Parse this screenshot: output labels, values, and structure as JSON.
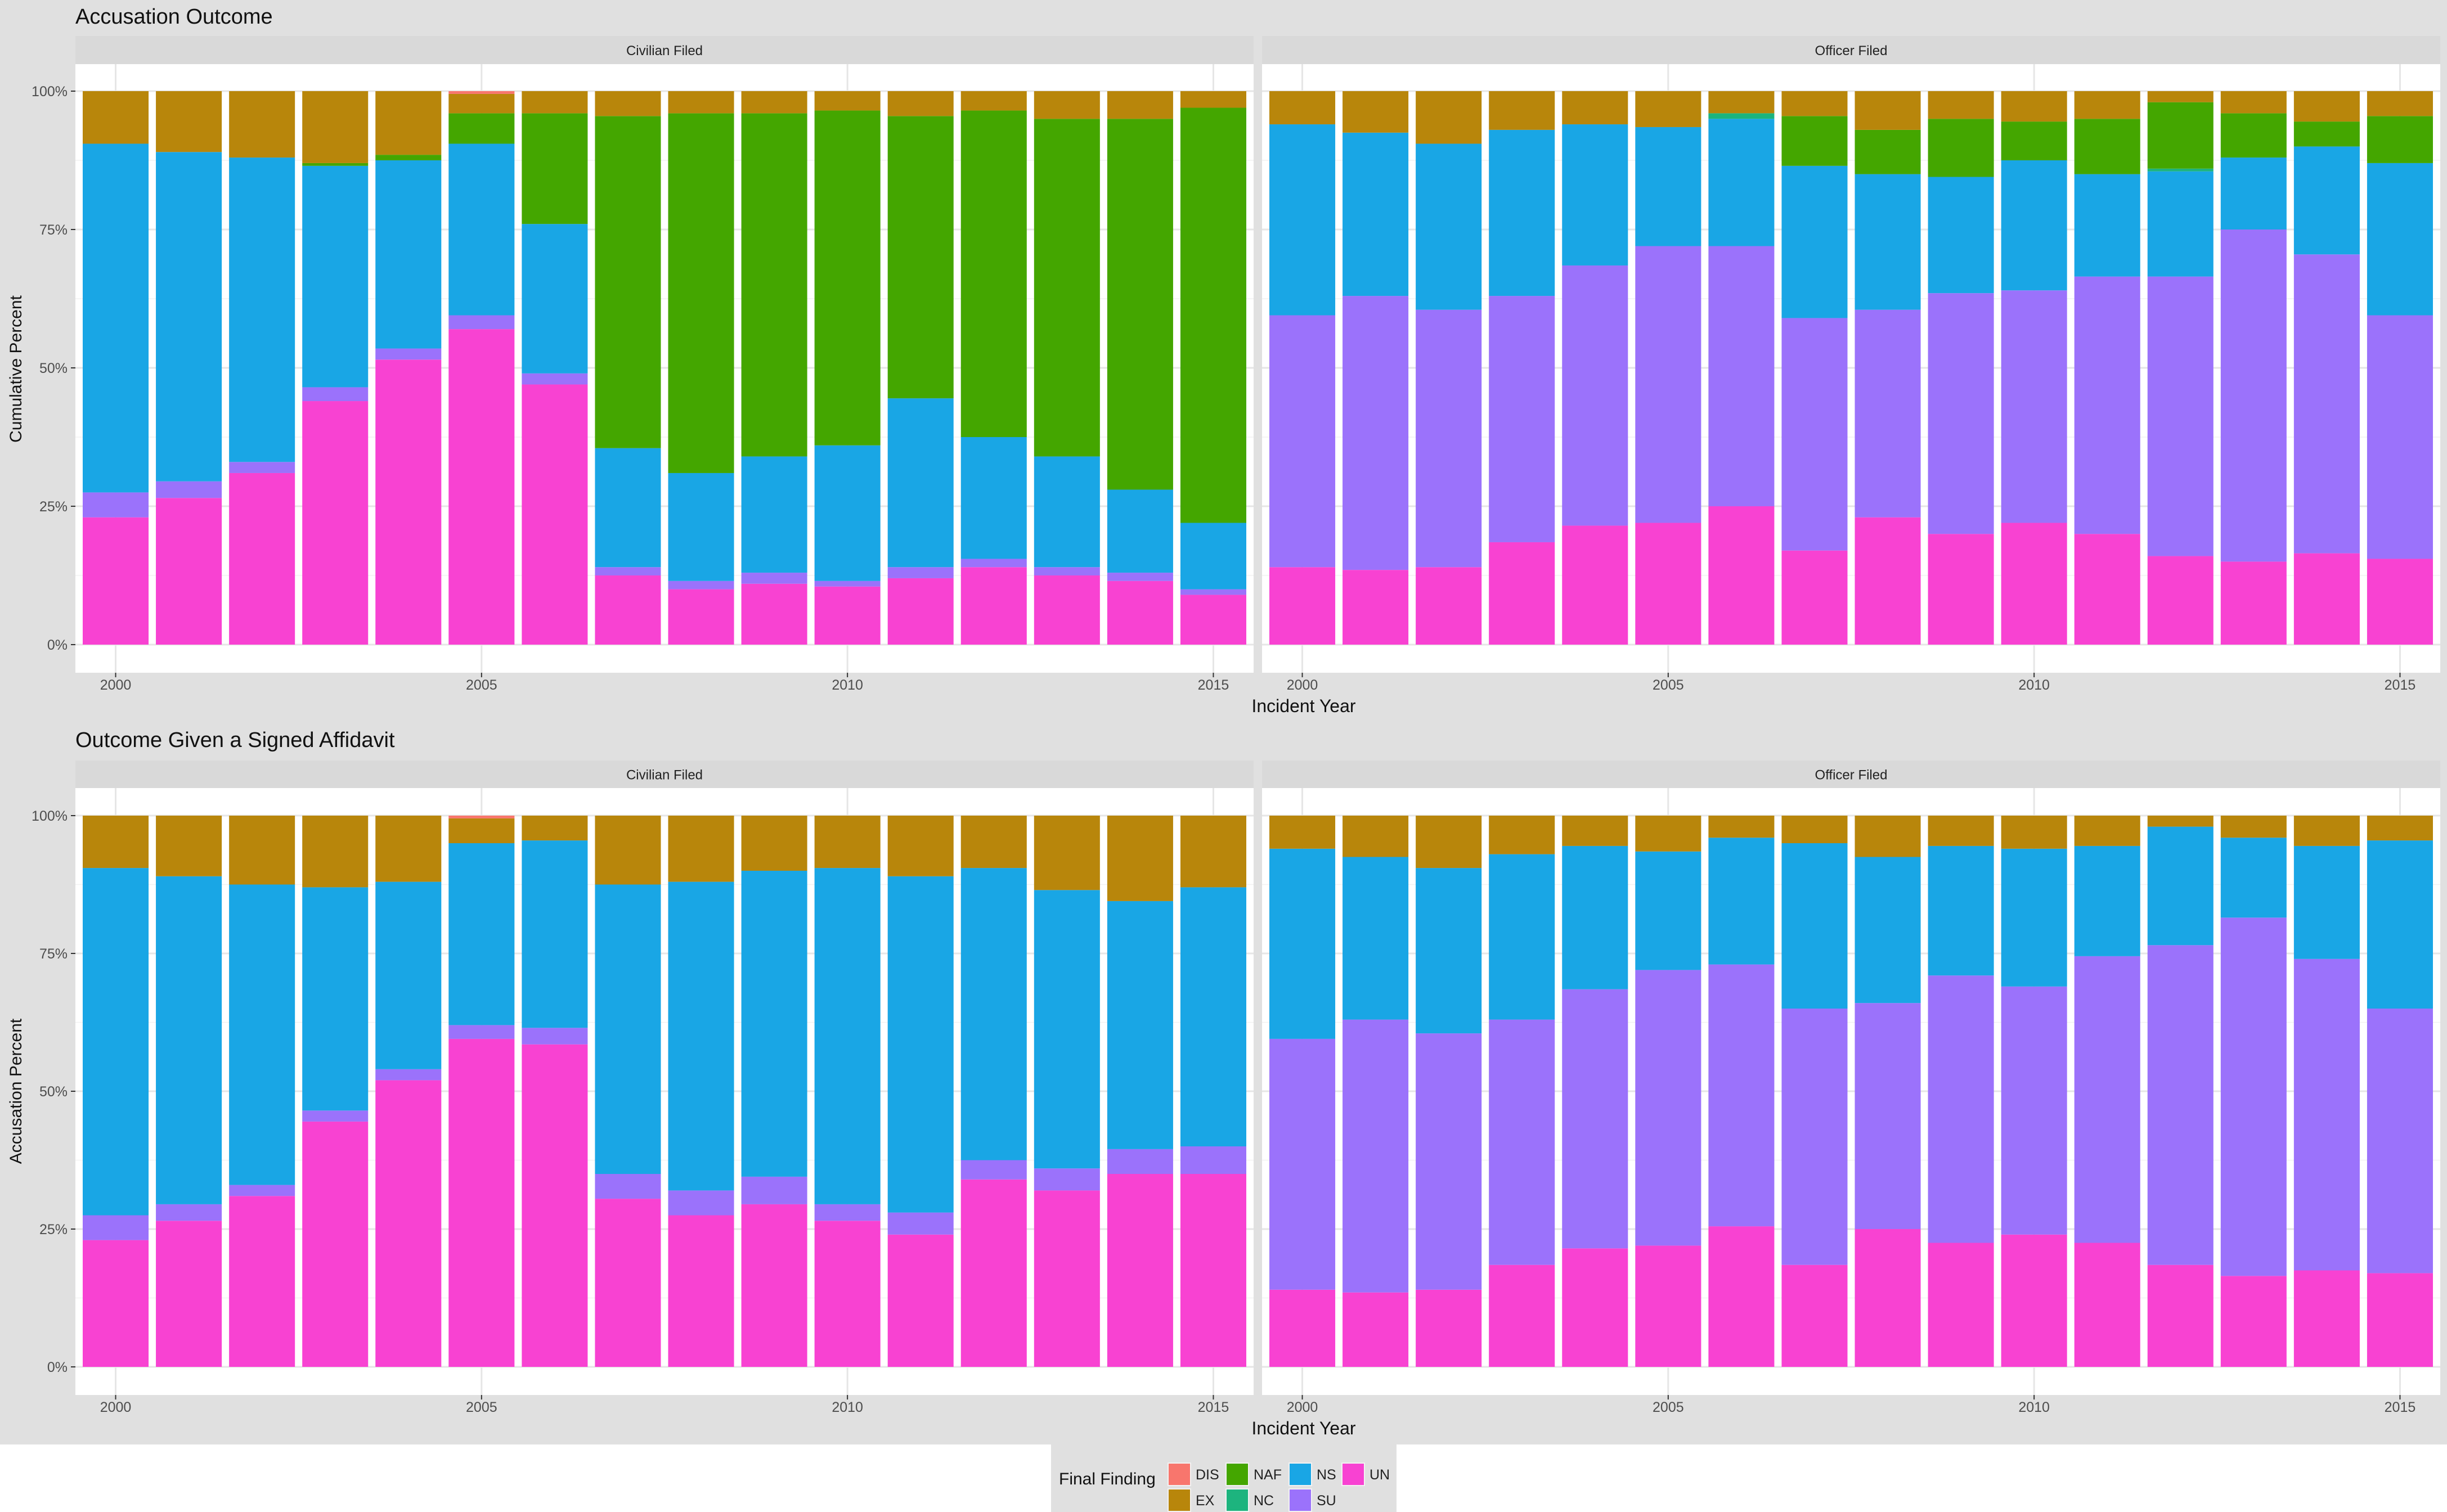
{
  "legend": {
    "title": "Final Finding",
    "items": [
      {
        "label": "DIS",
        "color": "#F8766D"
      },
      {
        "label": "EX",
        "color": "#B8860B"
      },
      {
        "label": "NAF",
        "color": "#44A600"
      },
      {
        "label": "NC",
        "color": "#1DB47E"
      },
      {
        "label": "NS",
        "color": "#19A6E5"
      },
      {
        "label": "SU",
        "color": "#9B72FB"
      },
      {
        "label": "UN",
        "color": "#F842D2"
      }
    ]
  },
  "chart_data": [
    {
      "type": "bar",
      "stacked": true,
      "title": "Accusation Outcome",
      "xlabel": "Incident Year",
      "ylabel": "Cumulative Percent",
      "ylim": [
        0,
        100
      ],
      "yticks": [
        "0%",
        "25%",
        "50%",
        "75%",
        "100%"
      ],
      "xticks": [
        "2000",
        "2005",
        "2010",
        "2015"
      ],
      "stack_order": [
        "UN",
        "SU",
        "NS",
        "NC",
        "NAF",
        "EX",
        "DIS"
      ],
      "panels": [
        {
          "strip": "Civilian  Filed",
          "categories": [
            2000,
            2001,
            2002,
            2003,
            2004,
            2005,
            2006,
            2007,
            2008,
            2009,
            2010,
            2011,
            2012,
            2013,
            2014,
            2015
          ],
          "series": [
            {
              "name": "UN",
              "values": [
                23,
                26.5,
                31,
                44,
                51.5,
                57,
                47,
                12.5,
                10,
                11,
                10.5,
                12,
                14,
                12.5,
                11.5,
                9
              ]
            },
            {
              "name": "SU",
              "values": [
                4.5,
                3,
                2,
                2.5,
                2,
                2.5,
                2,
                1.5,
                1.5,
                2,
                1,
                2,
                1.5,
                1.5,
                1.5,
                1
              ]
            },
            {
              "name": "NS",
              "values": [
                63,
                59.5,
                55,
                40,
                34,
                31,
                27,
                21.5,
                19.5,
                21,
                24.5,
                30.5,
                22,
                20,
                15,
                12
              ]
            },
            {
              "name": "NC",
              "values": [
                0,
                0,
                0,
                0,
                0,
                0,
                0,
                0,
                0,
                0,
                0,
                0,
                0,
                0,
                0,
                0
              ]
            },
            {
              "name": "NAF",
              "values": [
                0,
                0,
                0,
                0.5,
                1,
                5.5,
                20,
                60,
                65,
                62,
                60.5,
                51,
                59,
                61,
                67,
                75
              ]
            },
            {
              "name": "EX",
              "values": [
                9.5,
                11,
                12,
                13,
                11.5,
                3.5,
                4,
                4.5,
                4,
                4,
                3.5,
                4.5,
                3.5,
                5,
                5,
                3
              ]
            },
            {
              "name": "DIS",
              "values": [
                0,
                0,
                0,
                0,
                0,
                0.5,
                0,
                0,
                0,
                0,
                0,
                0,
                0,
                0,
                0,
                0
              ]
            }
          ]
        },
        {
          "strip": "Officer  Filed",
          "categories": [
            2000,
            2001,
            2002,
            2003,
            2004,
            2005,
            2006,
            2007,
            2008,
            2009,
            2010,
            2011,
            2012,
            2013,
            2014,
            2015
          ],
          "series": [
            {
              "name": "UN",
              "values": [
                14,
                13.5,
                14,
                18.5,
                21.5,
                22,
                25,
                17,
                23,
                20,
                22,
                20,
                16,
                15,
                16.5,
                15.5
              ]
            },
            {
              "name": "SU",
              "values": [
                45.5,
                49.5,
                46.5,
                44.5,
                47,
                50,
                47,
                42,
                37.5,
                43.5,
                42,
                46.5,
                50.5,
                60,
                54,
                44
              ]
            },
            {
              "name": "NS",
              "values": [
                34.5,
                29.5,
                30,
                30,
                25.5,
                21.5,
                23,
                27.5,
                24.5,
                21,
                23.5,
                18.5,
                19,
                13,
                19.5,
                27.5
              ]
            },
            {
              "name": "NC",
              "values": [
                0,
                0,
                0,
                0,
                0,
                0,
                1,
                0,
                0,
                0,
                0,
                0,
                0.5,
                0,
                0,
                0
              ]
            },
            {
              "name": "NAF",
              "values": [
                0,
                0,
                0,
                0,
                0,
                0,
                0,
                9,
                8,
                10.5,
                7,
                10,
                12,
                8,
                4.5,
                8.5
              ]
            },
            {
              "name": "EX",
              "values": [
                6,
                7.5,
                9.5,
                7,
                6,
                6.5,
                4,
                4.5,
                7,
                5,
                5.5,
                5,
                2,
                4,
                5.5,
                4.5
              ]
            },
            {
              "name": "DIS",
              "values": [
                0,
                0,
                0,
                0,
                0,
                0,
                0,
                0,
                0,
                0,
                0,
                0,
                0,
                0,
                0,
                0
              ]
            }
          ]
        }
      ]
    },
    {
      "type": "bar",
      "stacked": true,
      "title": "Outcome Given a Signed Affidavit",
      "xlabel": "Incident Year",
      "ylabel": "Accusation Percent",
      "ylim": [
        0,
        100
      ],
      "yticks": [
        "0%",
        "25%",
        "50%",
        "75%",
        "100%"
      ],
      "xticks": [
        "2000",
        "2005",
        "2010",
        "2015"
      ],
      "stack_order": [
        "UN",
        "SU",
        "NS",
        "NC",
        "NAF",
        "EX",
        "DIS"
      ],
      "panels": [
        {
          "strip": "Civilian  Filed",
          "categories": [
            2000,
            2001,
            2002,
            2003,
            2004,
            2005,
            2006,
            2007,
            2008,
            2009,
            2010,
            2011,
            2012,
            2013,
            2014,
            2015
          ],
          "series": [
            {
              "name": "UN",
              "values": [
                23,
                26.5,
                31,
                44.5,
                52,
                59.5,
                58.5,
                30.5,
                27.5,
                29.5,
                26.5,
                24,
                34,
                32,
                35,
                35
              ]
            },
            {
              "name": "SU",
              "values": [
                4.5,
                3,
                2,
                2,
                2,
                2.5,
                3,
                4.5,
                4.5,
                5,
                3,
                4,
                3.5,
                4,
                4.5,
                5
              ]
            },
            {
              "name": "NS",
              "values": [
                63,
                59.5,
                54.5,
                40.5,
                34,
                33,
                34,
                52.5,
                56,
                55.5,
                61,
                61,
                53,
                50.5,
                45,
                47
              ]
            },
            {
              "name": "NC",
              "values": [
                0,
                0,
                0,
                0,
                0,
                0,
                0,
                0,
                0,
                0,
                0,
                0,
                0,
                0,
                0,
                0
              ]
            },
            {
              "name": "NAF",
              "values": [
                0,
                0,
                0,
                0,
                0,
                0,
                0,
                0,
                0,
                0,
                0,
                0,
                0,
                0,
                0,
                0
              ]
            },
            {
              "name": "EX",
              "values": [
                9.5,
                11,
                12.5,
                13,
                12,
                4.5,
                4.5,
                12.5,
                12,
                10,
                9.5,
                11,
                9.5,
                13.5,
                15.5,
                13
              ]
            },
            {
              "name": "DIS",
              "values": [
                0,
                0,
                0,
                0,
                0,
                0.5,
                0,
                0,
                0,
                0,
                0,
                0,
                0,
                0,
                0,
                0
              ]
            }
          ]
        },
        {
          "strip": "Officer  Filed",
          "categories": [
            2000,
            2001,
            2002,
            2003,
            2004,
            2005,
            2006,
            2007,
            2008,
            2009,
            2010,
            2011,
            2012,
            2013,
            2014,
            2015
          ],
          "series": [
            {
              "name": "UN",
              "values": [
                14,
                13.5,
                14,
                18.5,
                21.5,
                22,
                25.5,
                18.5,
                25,
                22.5,
                24,
                22.5,
                18.5,
                16.5,
                17.5,
                17
              ]
            },
            {
              "name": "SU",
              "values": [
                45.5,
                49.5,
                46.5,
                44.5,
                47,
                50,
                47.5,
                46.5,
                41,
                48.5,
                45,
                52,
                58,
                65,
                56.5,
                48
              ]
            },
            {
              "name": "NS",
              "values": [
                34.5,
                29.5,
                30,
                30,
                26,
                21.5,
                23,
                30,
                26.5,
                23.5,
                25,
                20,
                21.5,
                14.5,
                20.5,
                30.5
              ]
            },
            {
              "name": "NC",
              "values": [
                0,
                0,
                0,
                0,
                0,
                0,
                0,
                0,
                0,
                0,
                0,
                0,
                0,
                0,
                0,
                0
              ]
            },
            {
              "name": "NAF",
              "values": [
                0,
                0,
                0,
                0,
                0,
                0,
                0,
                0,
                0,
                0,
                0,
                0,
                0,
                0,
                0,
                0
              ]
            },
            {
              "name": "EX",
              "values": [
                6,
                7.5,
                9.5,
                7,
                5.5,
                6.5,
                4,
                5,
                7.5,
                5.5,
                6,
                5.5,
                2,
                4,
                5.5,
                4.5
              ]
            },
            {
              "name": "DIS",
              "values": [
                0,
                0,
                0,
                0,
                0,
                0,
                0,
                0,
                0,
                0,
                0,
                0,
                0,
                0,
                0,
                0
              ]
            }
          ]
        }
      ]
    }
  ]
}
